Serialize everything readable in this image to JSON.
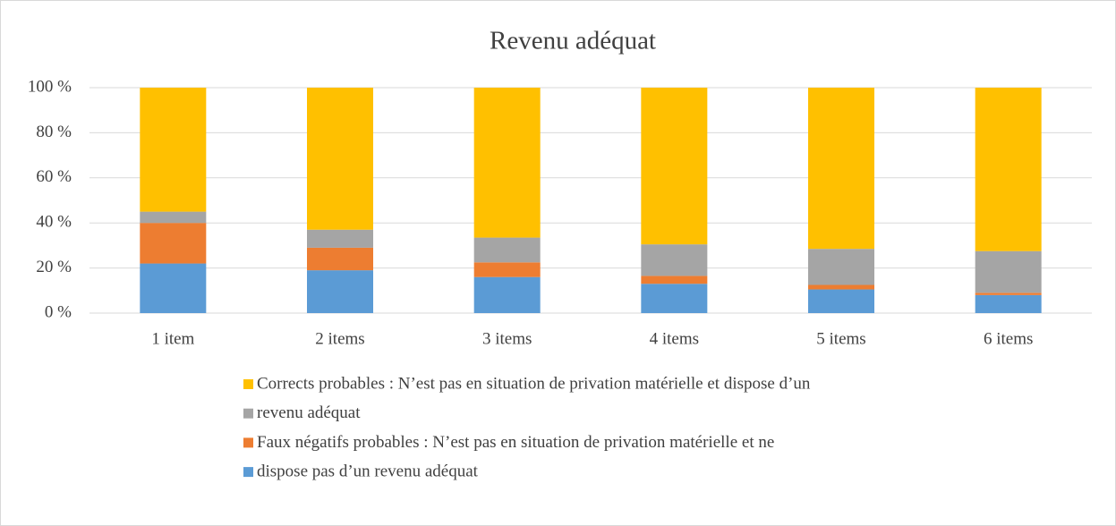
{
  "chart_data": {
    "type": "stacked_bar",
    "title": "Revenu adéquat",
    "categories": [
      "1 item",
      "2 items",
      "3 items",
      "4 items",
      "5 items",
      "6 items"
    ],
    "series": [
      {
        "name": "dispose pas d’un revenu adéquat",
        "color": "#5b9bd5",
        "values": [
          22,
          19,
          16,
          13,
          10.5,
          8
        ]
      },
      {
        "name": "Faux négatifs probables : N’est pas en situation de privation matérielle et ne",
        "color": "#ed7d31",
        "values": [
          18,
          10,
          6.5,
          3.5,
          2,
          1
        ]
      },
      {
        "name": "revenu adéquat",
        "color": "#a5a5a5",
        "values": [
          5,
          8,
          11,
          14,
          16,
          18.5
        ]
      },
      {
        "name": "Corrects probables : N’est pas en situation de privation matérielle et dispose d’un",
        "color": "#ffc000",
        "values": [
          55,
          63,
          66.5,
          69.5,
          71.5,
          72.5
        ]
      }
    ],
    "ylim": [
      0,
      100
    ],
    "yticks": [
      {
        "value": 0,
        "label": "0 %"
      },
      {
        "value": 20,
        "label": "20 %"
      },
      {
        "value": 40,
        "label": "40 %"
      },
      {
        "value": 60,
        "label": "60 %"
      },
      {
        "value": 80,
        "label": "80 %"
      },
      {
        "value": 100,
        "label": "100 %"
      }
    ],
    "grid": true,
    "legend": "bottom"
  }
}
